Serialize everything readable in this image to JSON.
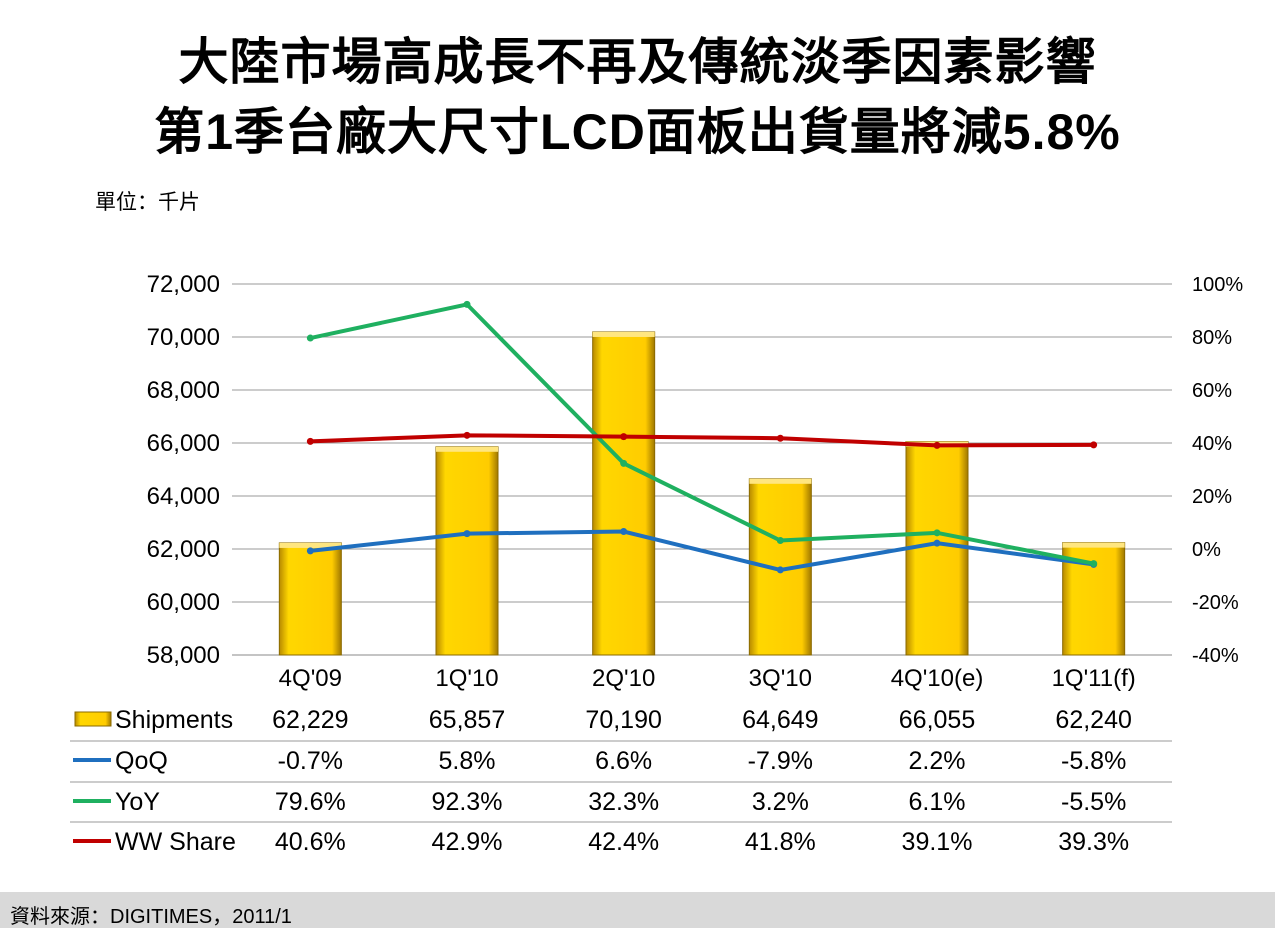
{
  "title_line1": "大陸市場高成長不再及傳統淡季因素影響",
  "title_line2": "第1季台廠大尺寸LCD面板出貨量將減5.8%",
  "unit": "單位：千片",
  "source": "資料來源：DIGITIMES，2011/1",
  "chart_data": {
    "type": "bar+line",
    "categories": [
      "4Q'09",
      "1Q'10",
      "2Q'10",
      "3Q'10",
      "4Q'10(e)",
      "1Q'11(f)"
    ],
    "left_axis": {
      "range": [
        58000,
        72000
      ],
      "ticks": [
        "58,000",
        "60,000",
        "62,000",
        "64,000",
        "66,000",
        "68,000",
        "70,000",
        "72,000"
      ]
    },
    "right_axis": {
      "range": [
        -40,
        100
      ],
      "ticks": [
        "-40%",
        "-20%",
        "0%",
        "20%",
        "40%",
        "60%",
        "80%",
        "100%"
      ]
    },
    "grid": true,
    "series": [
      {
        "name": "Shipments",
        "type": "bar",
        "axis": "left",
        "color": "#ffcc00",
        "values": [
          62229,
          65857,
          70190,
          64649,
          66055,
          62240
        ],
        "labels": [
          "62,229",
          "65,857",
          "70,190",
          "64,649",
          "66,055",
          "62,240"
        ]
      },
      {
        "name": "QoQ",
        "type": "line",
        "axis": "right",
        "color": "#1f6fbf",
        "values": [
          -0.7,
          5.8,
          6.6,
          -7.9,
          2.2,
          -5.8
        ],
        "labels": [
          "-0.7%",
          "5.8%",
          "6.6%",
          "-7.9%",
          "2.2%",
          "-5.8%"
        ]
      },
      {
        "name": "YoY",
        "type": "line",
        "axis": "right",
        "color": "#1fb060",
        "values": [
          79.6,
          92.3,
          32.3,
          3.2,
          6.1,
          -5.5
        ],
        "labels": [
          "79.6%",
          "92.3%",
          "32.3%",
          "3.2%",
          "6.1%",
          "-5.5%"
        ]
      },
      {
        "name": "WW Share",
        "type": "line",
        "axis": "right",
        "color": "#c00000",
        "values": [
          40.6,
          42.9,
          42.4,
          41.8,
          39.1,
          39.3
        ],
        "labels": [
          "40.6%",
          "42.9%",
          "42.4%",
          "41.8%",
          "39.1%",
          "39.3%"
        ]
      }
    ],
    "legend": "data-table"
  }
}
